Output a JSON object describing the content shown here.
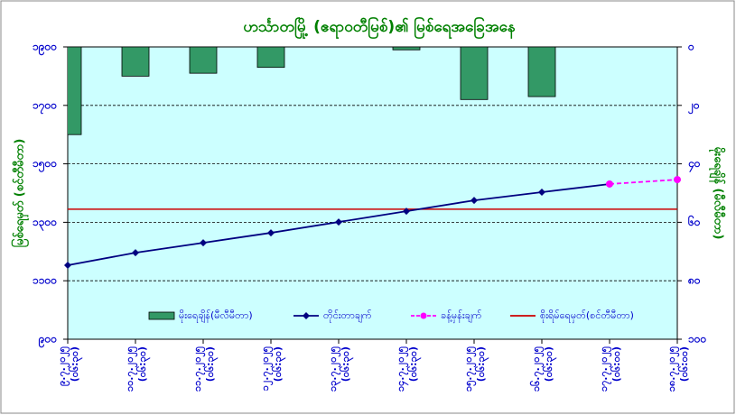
{
  "chart_data": {
    "type": "bar_line",
    "title": "ဟင်္သာတမြို့ (ဧရာဝတီမြစ်)၏ မြစ်ရေအခြေအနေ",
    "ylabel": "မြစ်ရေမှတ် (စင်တီမီတာ)",
    "y2label": "မိုးရေချိန် (မီလီမီတာ)",
    "categories": [
      [
        "၉.၇.၂၀၂၅",
        "(၀၆:၃၀)"
      ],
      [
        "၁၀.၇.၂၀၂၅",
        "(၀၆:၃၀)"
      ],
      [
        "၁၁.၇.၂၀၂၅",
        "(၀၆:၃၀)"
      ],
      [
        "၁၂.၇.၂၀၂၅",
        "(၀၆:၃၀)"
      ],
      [
        "၁၃.၇.၂၀၂၅",
        "(၀၆:၃၀)"
      ],
      [
        "၁၄.၇.၂၀၂၅",
        "(၀၆:၃၀)"
      ],
      [
        "၁၅.၇.၂၀၂၅",
        "(၀၆:၃၀)"
      ],
      [
        "၁၆.၇.၂၀၂၅",
        "(၀၆:၃၀)"
      ],
      [
        "၁၇.၇.၂၀၂၅",
        "(၀၆:၀၀)"
      ],
      [
        "၁၈.၇.၂၀၂၅",
        "(၀၆:၀၀)"
      ]
    ],
    "ylim": [
      900,
      1900
    ],
    "yticks": [
      {
        "value": 900,
        "label": "၉၀၀"
      },
      {
        "value": 1100,
        "label": "၁၁၀၀"
      },
      {
        "value": 1300,
        "label": "၁၃၀၀"
      },
      {
        "value": 1500,
        "label": "၁၅၀၀"
      },
      {
        "value": 1700,
        "label": "၁၇၀၀"
      },
      {
        "value": 1900,
        "label": "၁၉၀၀"
      }
    ],
    "y2lim": [
      100,
      0
    ],
    "y2ticks": [
      {
        "value": 0,
        "label": "၀"
      },
      {
        "value": 20,
        "label": "၂၀"
      },
      {
        "value": 40,
        "label": "၄၀"
      },
      {
        "value": 60,
        "label": "၆၀"
      },
      {
        "value": 80,
        "label": "၈၀"
      },
      {
        "value": 100,
        "label": "၁၀၀"
      }
    ],
    "grid": true,
    "series": [
      {
        "name": "မိုးရေချိန်(မီလီမီတာ)",
        "kind": "bar",
        "axis": "y2",
        "color": "#339966",
        "values": [
          30,
          10,
          9,
          7,
          0,
          1,
          18,
          17,
          null,
          null
        ]
      },
      {
        "name": "တိုင်းတာချက်",
        "kind": "line",
        "color": "#000080",
        "values": [
          1153,
          1196,
          1230,
          1264,
          1301,
          1338,
          1375,
          1403,
          1431,
          null
        ]
      },
      {
        "name": "ခန့်မှန်းချက်",
        "kind": "dashed",
        "color": "#ff00ff",
        "values": [
          null,
          null,
          null,
          null,
          null,
          null,
          null,
          null,
          1431,
          1446
        ]
      }
    ],
    "reference_line": {
      "name": "စိုးရိမ်ရေမှတ်(စင်တီမီတာ)",
      "color": "#cc0000",
      "value": 1345
    }
  }
}
